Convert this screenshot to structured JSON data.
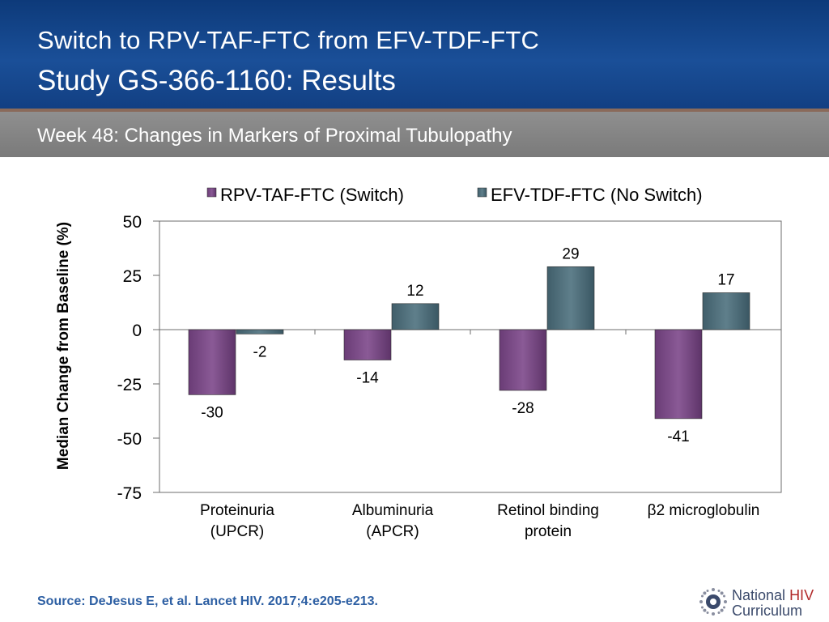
{
  "header": {
    "title_line1": "Switch to RPV-TAF-FTC from EFV-TDF-FTC",
    "title_line2": "Study GS-366-1160: Results",
    "subtitle": "Week 48: Changes in Markers of Proximal Tubulopathy"
  },
  "colors": {
    "series1": "#7b4a86",
    "series2": "#4f6e7a"
  },
  "chart_data": {
    "type": "bar",
    "title": "",
    "xlabel": "",
    "ylabel": "Median Change from Baseline (%)",
    "ylim": [
      -75,
      50
    ],
    "yticks": [
      "50",
      "25",
      "0",
      "-25",
      "-50",
      "-75"
    ],
    "legend_position": "top",
    "categories": [
      [
        "Proteinuria",
        "(UPCR)"
      ],
      [
        "Albuminuria",
        "(APCR)"
      ],
      [
        "Retinol binding",
        "protein"
      ],
      [
        "β2 microglobulin"
      ]
    ],
    "series": [
      {
        "name": "RPV-TAF-FTC (Switch)",
        "values": [
          -30,
          -14,
          -28,
          -41
        ]
      },
      {
        "name": "EFV-TDF-FTC (No Switch)",
        "values": [
          -2,
          12,
          29,
          17
        ]
      }
    ]
  },
  "footer": {
    "source": "Source: DeJesus E, et al. Lancet HIV. 2017;4:e205-e213.",
    "logo_word1": "National",
    "logo_word2": "HIV",
    "logo_word3": "Curriculum"
  }
}
